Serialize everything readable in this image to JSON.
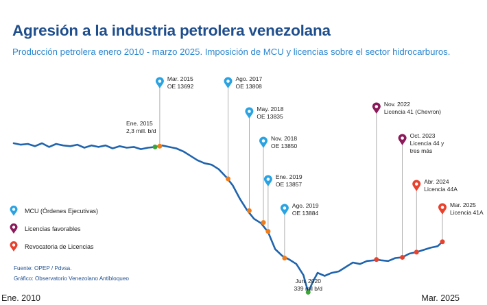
{
  "header": {
    "title": "Agresión a la industria petrolera venezolana",
    "subtitle": "Producción petrolera enero 2010 - marzo 2025. Imposición de MCU y licencias sobre el sector hidrocarburos."
  },
  "colors": {
    "title": "#1f4e8c",
    "subtitle": "#2a86d0",
    "line": "#1f64ad",
    "mcu": "#2aa3e3",
    "favorable": "#8b1a5a",
    "revocatoria": "#e8412c",
    "event_dot": "#f07d19",
    "marker_green": "#3ba635"
  },
  "legend": [
    {
      "label": "MCU (Órdenes Ejecutivas)",
      "icon": "pin-blue-icon"
    },
    {
      "label": "Licencias favorables",
      "icon": "pin-purple-icon"
    },
    {
      "label": "Revocatoria de Licencias",
      "icon": "pin-red-icon"
    }
  ],
  "source": {
    "fuente": "Fuente: OPEP / Pdvsa.",
    "grafico": "Gráfico: Observatorio Venezolano Antibloqueo"
  },
  "axis": {
    "start_label": "Ene. 2010",
    "end_label": "Mar. 2025"
  },
  "chart_data": {
    "type": "line",
    "title": "Agresión a la industria petrolera venezolana",
    "subtitle": "Producción petrolera enero 2010 - marzo 2025. Imposición de MCU y licencias sobre el sector hidrocarburos.",
    "x_range": [
      "2010-01",
      "2025-03"
    ],
    "y_range_mbd": [
      0,
      3000
    ],
    "grid": false,
    "legend_position": "left",
    "series": [
      {
        "x": [
          "2010-01",
          "2010-04",
          "2010-07",
          "2010-10",
          "2011-01",
          "2011-04",
          "2011-07",
          "2011-10",
          "2012-01",
          "2012-04",
          "2012-07",
          "2012-10",
          "2013-01",
          "2013-04",
          "2013-07",
          "2013-10",
          "2014-01",
          "2014-04",
          "2014-07",
          "2014-10",
          "2015-01",
          "2015-04",
          "2015-07",
          "2015-10",
          "2016-01",
          "2016-04",
          "2016-07",
          "2016-10",
          "2017-01",
          "2017-04",
          "2017-07",
          "2017-10",
          "2018-01",
          "2018-04",
          "2018-07",
          "2018-10",
          "2019-01",
          "2019-04",
          "2019-07",
          "2019-10",
          "2020-01",
          "2020-04",
          "2020-06",
          "2020-08",
          "2020-10",
          "2021-01",
          "2021-04",
          "2021-07",
          "2021-10",
          "2022-01",
          "2022-04",
          "2022-07",
          "2022-10",
          "2022-11",
          "2023-01",
          "2023-04",
          "2023-07",
          "2023-10",
          "2024-01",
          "2024-04",
          "2024-07",
          "2024-10",
          "2025-01",
          "2025-03"
        ],
        "values": [
          2350,
          2330,
          2340,
          2310,
          2350,
          2300,
          2340,
          2320,
          2310,
          2330,
          2290,
          2320,
          2300,
          2320,
          2280,
          2310,
          2290,
          2300,
          2270,
          2290,
          2300,
          2320,
          2300,
          2280,
          2240,
          2180,
          2120,
          2080,
          2060,
          2000,
          1900,
          1780,
          1600,
          1450,
          1330,
          1270,
          1150,
          920,
          830,
          780,
          720,
          570,
          339,
          480,
          600,
          560,
          600,
          620,
          680,
          740,
          720,
          760,
          770,
          780,
          770,
          760,
          800,
          810,
          860,
          880,
          910,
          940,
          960,
          1020
        ]
      }
    ],
    "events": [
      {
        "date": "2015-03",
        "type": "MCU",
        "label_line1": "Mar. 2015",
        "label_line2": "OE 13692",
        "value": 2310
      },
      {
        "date": "2017-08",
        "type": "MCU",
        "label_line1": "Ago. 2017",
        "label_line2": "OE 13808",
        "value": 1870
      },
      {
        "date": "2018-05",
        "type": "MCU",
        "label_line1": "May. 2018",
        "label_line2": "OE 13835",
        "value": 1440
      },
      {
        "date": "2018-11",
        "type": "MCU",
        "label_line1": "Nov.  2018",
        "label_line2": "OE 13850",
        "value": 1280
      },
      {
        "date": "2019-01",
        "type": "MCU",
        "label_line1": "Ene. 2019",
        "label_line2": "OE 13857",
        "value": 1160
      },
      {
        "date": "2019-08",
        "type": "MCU",
        "label_line1": "Ago. 2019",
        "label_line2": "OE 13884",
        "value": 800
      },
      {
        "date": "2022-11",
        "type": "Licencias favorables",
        "label_line1": "Nov. 2022",
        "label_line2": "Licencia 41 (Chevron)",
        "value": 780
      },
      {
        "date": "2023-10",
        "type": "Licencias favorables",
        "label_line1": "Oct. 2023",
        "label_line2": "Licencia 44 y",
        "label_line3": "tres más",
        "value": 810
      },
      {
        "date": "2024-04",
        "type": "Revocatoria de Licencias",
        "label_line1": "Abr. 2024",
        "label_line2": "Licencia 44A",
        "value": 880
      },
      {
        "date": "2025-03",
        "type": "Revocatoria de Licencias",
        "label_line1": "Mar. 2025",
        "label_line2": "Licencia 41A",
        "value": 1020
      }
    ],
    "annotations": [
      {
        "date": "2015-01",
        "text_line1": "Ene. 2015",
        "text_line2": "2,3 mill. b/d",
        "value": 2300
      },
      {
        "date": "2020-06",
        "text_line1": "Jun. 2020",
        "text_line2": "339 mil b/d",
        "value": 339
      }
    ]
  }
}
